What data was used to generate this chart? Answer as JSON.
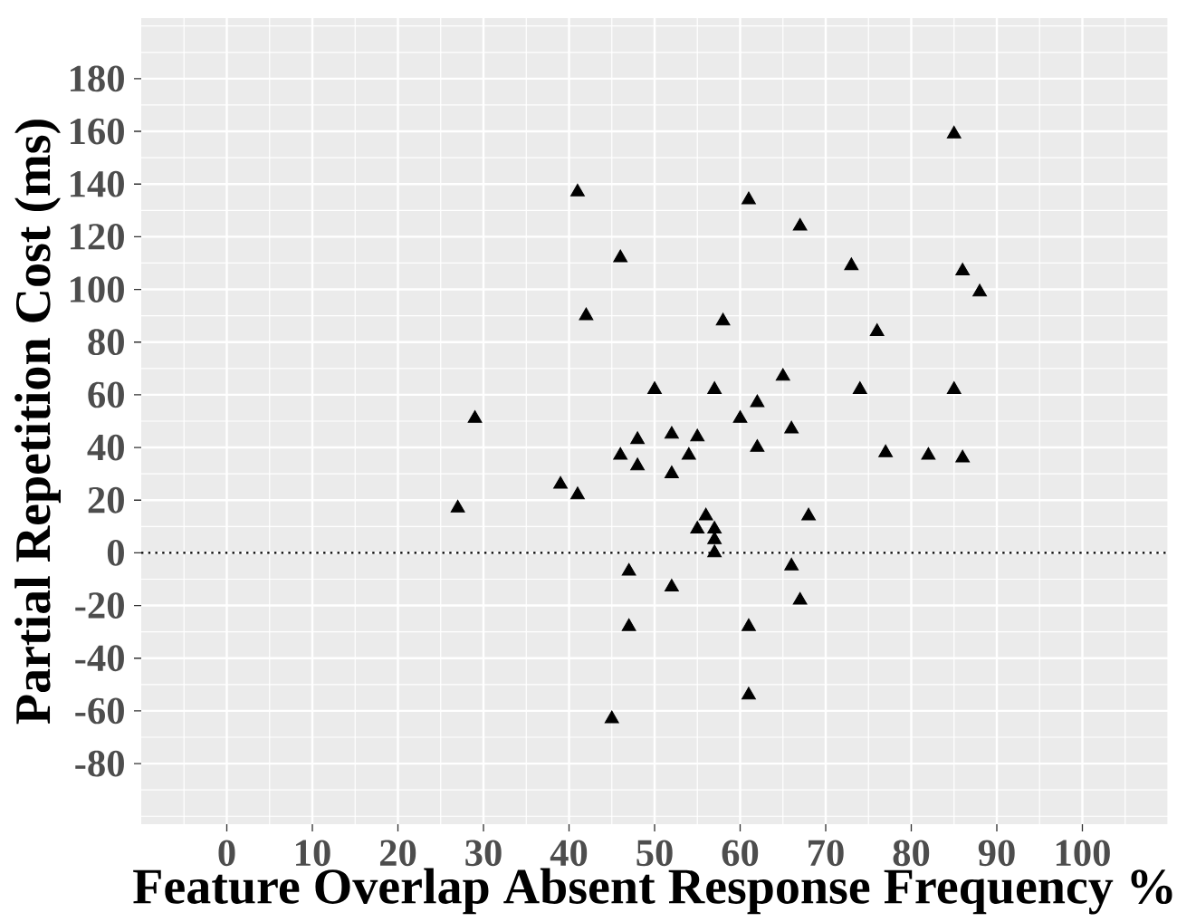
{
  "chart_data": {
    "type": "scatter",
    "xlabel": "Feature Overlap Absent Response Frequency %",
    "ylabel": "Partial Repetition Cost (ms)",
    "x": [
      27,
      29,
      39,
      41,
      41,
      42,
      45,
      46,
      46,
      47,
      47,
      48,
      48,
      50,
      52,
      52,
      52,
      54,
      55,
      55,
      56,
      57,
      57,
      57,
      57,
      58,
      60,
      61,
      61,
      61,
      62,
      62,
      65,
      66,
      66,
      67,
      67,
      68,
      73,
      74,
      76,
      77,
      82,
      85,
      85,
      86,
      86,
      88
    ],
    "values": [
      17,
      51,
      26,
      22,
      137,
      90,
      -63,
      112,
      37,
      -7,
      -28,
      43,
      33,
      62,
      45,
      30,
      -13,
      37,
      44,
      9,
      14,
      62,
      9,
      5,
      0,
      88,
      51,
      134,
      -28,
      -54,
      57,
      40,
      67,
      47,
      -5,
      124,
      -18,
      14,
      109,
      62,
      84,
      38,
      37,
      159,
      62,
      107,
      36,
      99
    ],
    "color": "#000000",
    "marker": "triangle",
    "xlim": [
      -10,
      110
    ],
    "ylim": [
      -103,
      203
    ],
    "xticks": [
      0,
      10,
      20,
      30,
      40,
      50,
      60,
      70,
      80,
      90,
      100
    ],
    "yticks": [
      -80,
      -60,
      -40,
      -20,
      0,
      20,
      40,
      60,
      80,
      100,
      120,
      140,
      160,
      180
    ],
    "grid": true,
    "ref_lines": [
      {
        "axis": "y",
        "value": 0,
        "line_style": "dotted",
        "color": "#000000"
      }
    ]
  }
}
